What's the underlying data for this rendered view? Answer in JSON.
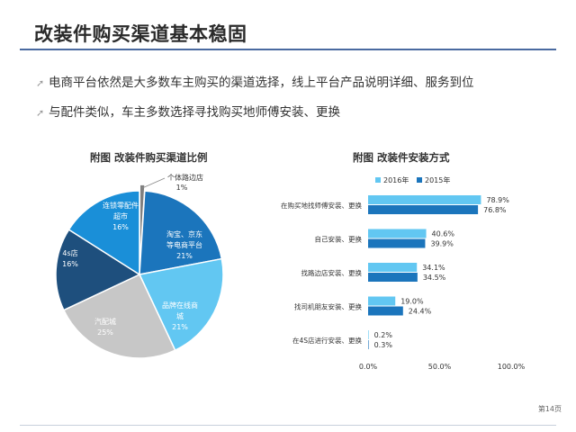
{
  "slide": {
    "title": "改装件购买渠道基本稳固",
    "bullets": [
      "电商平台依然是大多数车主购买的渠道选择，线上平台产品说明详细、服务到位",
      "与配件类似，车主多数选择寻找购买地师傅安装、更换"
    ],
    "page_number": "第14页"
  },
  "chart_data": [
    {
      "type": "pie",
      "title": "附图  改装件购买渠道比例",
      "slices": [
        {
          "label": [
            "个体路边店"
          ],
          "value": 1,
          "pct_label": "1%",
          "color": "#808080"
        },
        {
          "label": [
            "淘宝、京东",
            "等电商平台"
          ],
          "value": 21,
          "pct_label": "21%",
          "color": "#1b75bc"
        },
        {
          "label": [
            "品牌在线商",
            "城"
          ],
          "value": 21,
          "pct_label": "21%",
          "color": "#62c7f2"
        },
        {
          "label": [
            "汽配城"
          ],
          "value": 25,
          "pct_label": "25%",
          "color": "#c7c7c7"
        },
        {
          "label": [
            "4s店"
          ],
          "value": 16,
          "pct_label": "16%",
          "color": "#1e4f7d"
        },
        {
          "label": [
            "连锁零配件",
            "超市"
          ],
          "value": 16,
          "pct_label": "16%",
          "color": "#1a8fd8"
        }
      ]
    },
    {
      "type": "bar",
      "orientation": "horizontal",
      "title": "附图  改装件安装方式",
      "categories": [
        "在购买地找师傅安装、更换",
        "自己安装、更换",
        "找路边店安装、更换",
        "找司机朋友安装、更换",
        "在4S店进行安装、更换"
      ],
      "series": [
        {
          "name": "2016年",
          "color": "#62c7f2",
          "values": [
            78.9,
            40.6,
            34.1,
            19.0,
            0.2
          ],
          "labels": [
            "78.9%",
            "40.6%",
            "34.1%",
            "19.0%",
            "0.2%"
          ]
        },
        {
          "name": "2015年",
          "color": "#1b75bc",
          "values": [
            76.8,
            39.9,
            34.5,
            24.4,
            0.3
          ],
          "labels": [
            "76.8%",
            "39.9%",
            "34.5%",
            "24.4%",
            "0.3%"
          ]
        }
      ],
      "xlim": [
        0,
        100
      ],
      "xticks": [
        "0.0%",
        "50.0%",
        "100.0%"
      ],
      "legend": "top"
    }
  ]
}
